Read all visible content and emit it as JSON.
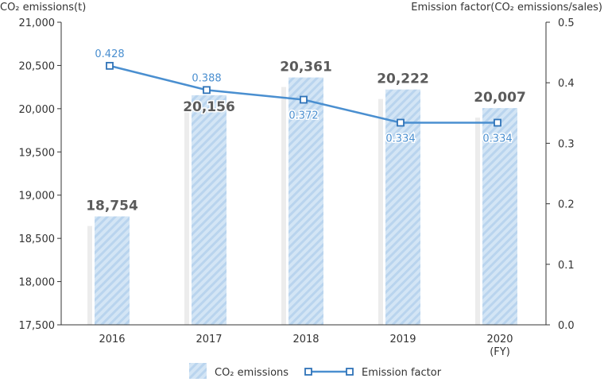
{
  "chart_data": {
    "type": "bar",
    "categories": [
      "2016",
      "2017",
      "2018",
      "2019",
      "2020"
    ],
    "category_sublabels": [
      "",
      "",
      "",
      "",
      "(FY)"
    ],
    "left_axis": {
      "label": "CO₂ emissions(t)",
      "ylim": [
        17500,
        21000
      ],
      "ticks": [
        17500,
        18000,
        18500,
        19000,
        19500,
        20000,
        20500,
        21000
      ],
      "tick_labels": [
        "17,500",
        "18,000",
        "18,500",
        "19,000",
        "19,500",
        "20,000",
        "20,500",
        "21,000"
      ]
    },
    "right_axis": {
      "label": "Emission factor(CO₂ emissions/sales)",
      "ylim": [
        0.0,
        0.5
      ],
      "ticks": [
        0.0,
        0.1,
        0.2,
        0.3,
        0.4,
        0.5
      ],
      "tick_labels": [
        "0.0",
        "0.1",
        "0.2",
        "0.3",
        "0.4",
        "0.5"
      ]
    },
    "series": [
      {
        "name": "CO₂ emissions",
        "type": "bar",
        "axis": "left",
        "values": [
          18754,
          20156,
          20361,
          20222,
          20007
        ],
        "labels": [
          "18,754",
          "20,156",
          "20,361",
          "20,222",
          "20,007"
        ],
        "color": "#c5dcf0"
      },
      {
        "name": "Emission factor",
        "type": "line",
        "axis": "right",
        "values": [
          0.428,
          0.388,
          0.372,
          0.334,
          0.334
        ],
        "labels": [
          "0.428",
          "0.388",
          "0.372",
          "0.334",
          "0.334"
        ],
        "color": "#4a8fd0"
      }
    ],
    "grid": false,
    "legend_position": "bottom"
  }
}
